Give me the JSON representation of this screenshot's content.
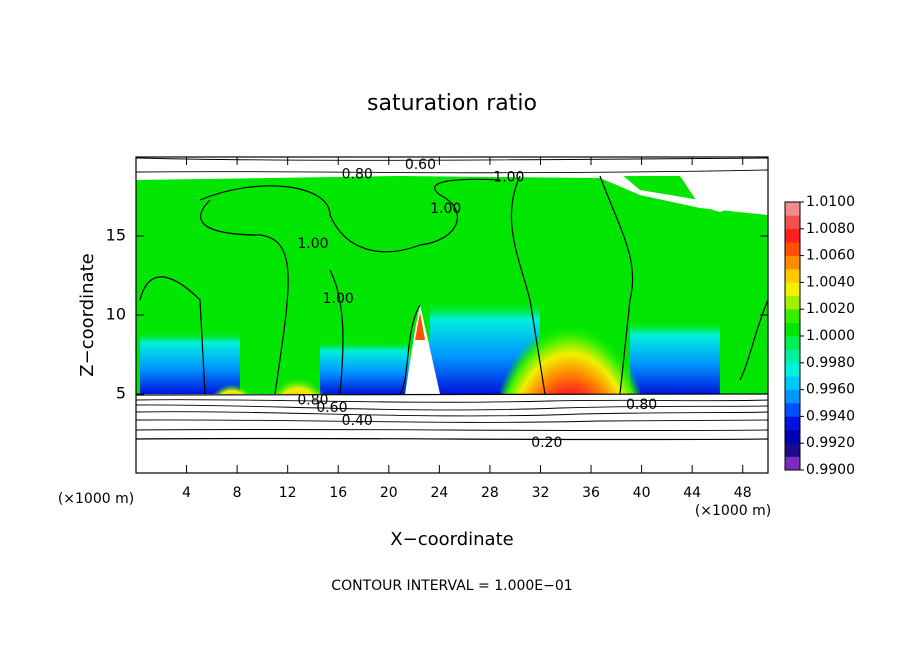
{
  "chart_data": {
    "type": "contour",
    "title": "saturation ratio",
    "x_label": "X−coordinate",
    "y_label": "Z−coordinate",
    "x_unit": "(×1000 m)",
    "footnote": "CONTOUR INTERVAL = 1.000E−01",
    "xlim": [
      0,
      50
    ],
    "ylim": [
      0,
      20
    ],
    "xticks": [
      4,
      8,
      12,
      16,
      20,
      24,
      28,
      32,
      36,
      40,
      44,
      48
    ],
    "yticks": [
      5,
      10,
      15
    ],
    "colorbar": {
      "lim": [
        0.99,
        1.01
      ],
      "ticks": [
        {
          "value": 0.99,
          "label": "0.9900"
        },
        {
          "value": 0.992,
          "label": "0.9920"
        },
        {
          "value": 0.994,
          "label": "0.9940"
        },
        {
          "value": 0.996,
          "label": "0.9960"
        },
        {
          "value": 0.998,
          "label": "0.9980"
        },
        {
          "value": 1.0,
          "label": "1.0000"
        },
        {
          "value": 1.002,
          "label": "1.0020"
        },
        {
          "value": 1.004,
          "label": "1.0040"
        },
        {
          "value": 1.006,
          "label": "1.0060"
        },
        {
          "value": 1.008,
          "label": "1.0080"
        },
        {
          "value": 1.01,
          "label": "1.0100"
        }
      ],
      "colors": [
        "#7b2cbf",
        "#1a0a8c",
        "#0000b4",
        "#0014dc",
        "#0050ff",
        "#0096ff",
        "#00c8ff",
        "#00f0dc",
        "#00f0a0",
        "#00f050",
        "#00e600",
        "#32f000",
        "#a0f000",
        "#f0f000",
        "#ffc800",
        "#ff8c00",
        "#ff5000",
        "#ff1e1e",
        "#f05050",
        "#f08c8c"
      ]
    },
    "contour_labels": [
      {
        "value": 0.6,
        "label": "0.60",
        "x": 22.5,
        "y": 19.5
      },
      {
        "value": 0.8,
        "label": "0.80",
        "x": 17.5,
        "y": 18.9
      },
      {
        "value": 1.0,
        "label": "1.00",
        "x": 29.5,
        "y": 18.7
      },
      {
        "value": 1.0,
        "label": "1.00",
        "x": 24.5,
        "y": 16.7
      },
      {
        "value": 1.0,
        "label": "1.00",
        "x": 14,
        "y": 14.5
      },
      {
        "value": 1.0,
        "label": "1.00",
        "x": 16,
        "y": 11
      },
      {
        "value": 0.8,
        "label": "0.80",
        "x": 14,
        "y": 4.6
      },
      {
        "value": 0.6,
        "label": "0.60",
        "x": 15.5,
        "y": 4.1
      },
      {
        "value": 0.4,
        "label": "0.40",
        "x": 17.5,
        "y": 3.3
      },
      {
        "value": 0.8,
        "label": "0.80",
        "x": 40,
        "y": 4.3
      },
      {
        "value": 0.2,
        "label": "0.20",
        "x": 32.5,
        "y": 1.9
      }
    ]
  }
}
